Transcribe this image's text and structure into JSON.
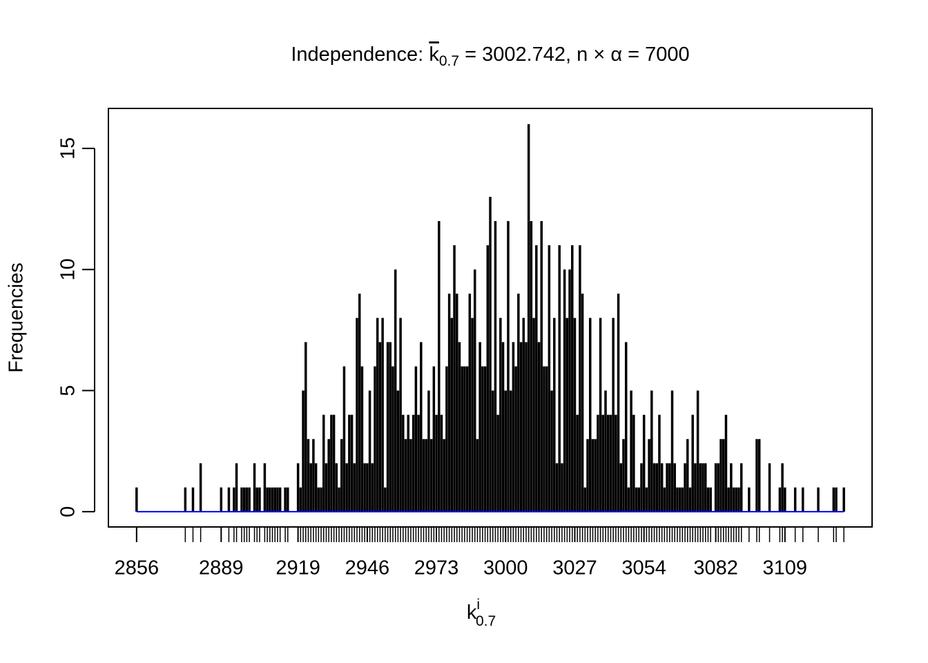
{
  "chart_data": {
    "type": "bar",
    "title_parts": [
      "Independence: ",
      "k",
      "0.7",
      " = 3002.742, n × α = 7000"
    ],
    "x_label_parts": [
      "k",
      "i",
      "0.7"
    ],
    "y_label": "Frequencies",
    "x": [
      2856,
      2875,
      2878,
      2881,
      2889,
      2892,
      2894,
      2895,
      2897,
      2898,
      2899,
      2900,
      2902,
      2903,
      2904,
      2906,
      2907,
      2908,
      2909,
      2910,
      2911,
      2912,
      2914,
      2915,
      2919,
      2920,
      2921,
      2922,
      2923,
      2924,
      2925,
      2926,
      2927,
      2928,
      2929,
      2930,
      2931,
      2932,
      2933,
      2934,
      2935,
      2936,
      2937,
      2938,
      2939,
      2940,
      2941,
      2942,
      2943,
      2944,
      2945,
      2946,
      2947,
      2948,
      2949,
      2950,
      2951,
      2952,
      2953,
      2954,
      2955,
      2956,
      2957,
      2958,
      2959,
      2960,
      2961,
      2962,
      2963,
      2964,
      2965,
      2966,
      2967,
      2968,
      2969,
      2970,
      2971,
      2972,
      2973,
      2974,
      2975,
      2976,
      2977,
      2978,
      2979,
      2980,
      2981,
      2982,
      2983,
      2984,
      2985,
      2986,
      2987,
      2988,
      2989,
      2990,
      2991,
      2992,
      2993,
      2994,
      2995,
      2996,
      2997,
      2998,
      2999,
      3000,
      3001,
      3002,
      3003,
      3004,
      3005,
      3006,
      3007,
      3008,
      3009,
      3010,
      3011,
      3012,
      3013,
      3014,
      3015,
      3016,
      3017,
      3018,
      3019,
      3020,
      3021,
      3022,
      3023,
      3024,
      3025,
      3026,
      3027,
      3028,
      3029,
      3030,
      3031,
      3032,
      3033,
      3034,
      3035,
      3036,
      3037,
      3038,
      3039,
      3040,
      3041,
      3042,
      3043,
      3044,
      3045,
      3046,
      3047,
      3048,
      3049,
      3050,
      3051,
      3052,
      3053,
      3054,
      3055,
      3056,
      3057,
      3058,
      3059,
      3060,
      3061,
      3062,
      3063,
      3064,
      3065,
      3066,
      3067,
      3068,
      3069,
      3070,
      3071,
      3072,
      3073,
      3074,
      3075,
      3076,
      3077,
      3078,
      3079,
      3080,
      3082,
      3083,
      3084,
      3085,
      3086,
      3087,
      3088,
      3089,
      3090,
      3091,
      3092,
      3095,
      3098,
      3099,
      3103,
      3107,
      3108,
      3109,
      3113,
      3116,
      3122,
      3128,
      3129,
      3132
    ],
    "values": [
      1,
      1,
      1,
      2,
      1,
      1,
      1,
      2,
      1,
      1,
      1,
      1,
      2,
      1,
      1,
      2,
      1,
      1,
      1,
      1,
      1,
      1,
      1,
      1,
      2,
      1,
      5,
      7,
      3,
      2,
      3,
      2,
      1,
      1,
      4,
      2,
      3,
      4,
      4,
      2,
      1,
      3,
      6,
      2,
      4,
      4,
      2,
      8,
      9,
      6,
      2,
      2,
      5,
      2,
      6,
      8,
      7,
      8,
      1,
      7,
      7,
      6,
      10,
      5,
      8,
      4,
      3,
      4,
      3,
      4,
      6,
      4,
      7,
      3,
      3,
      5,
      3,
      6,
      4,
      12,
      4,
      3,
      6,
      9,
      8,
      11,
      9,
      7,
      6,
      6,
      6,
      9,
      8,
      10,
      3,
      7,
      6,
      6,
      11,
      13,
      5,
      12,
      4,
      8,
      7,
      5,
      12,
      5,
      7,
      6,
      9,
      7,
      8,
      7,
      16,
      12,
      8,
      11,
      7,
      12,
      6,
      6,
      11,
      5,
      8,
      2,
      11,
      2,
      10,
      8,
      10,
      11,
      8,
      4,
      11,
      9,
      1,
      3,
      8,
      3,
      3,
      4,
      8,
      4,
      5,
      4,
      4,
      8,
      4,
      9,
      2,
      3,
      7,
      1,
      5,
      4,
      1,
      1,
      2,
      4,
      1,
      3,
      5,
      2,
      2,
      4,
      2,
      1,
      2,
      2,
      5,
      2,
      1,
      1,
      1,
      2,
      3,
      1,
      4,
      2,
      5,
      2,
      2,
      2,
      1,
      1,
      2,
      2,
      3,
      3,
      4,
      1,
      2,
      1,
      1,
      1,
      2,
      1,
      3,
      3,
      2,
      1,
      2,
      1,
      1,
      1,
      1,
      1,
      1,
      1
    ],
    "color": "#000000",
    "baseline_color": "#0000ff",
    "xlim": [
      2845,
      3143
    ],
    "xticks": [
      2856,
      2889,
      2919,
      2946,
      2973,
      3000,
      3027,
      3054,
      3082,
      3109
    ],
    "ylim": [
      -0.63,
      16.65
    ],
    "yticks": [
      0,
      5,
      10,
      15
    ],
    "grid": false
  }
}
